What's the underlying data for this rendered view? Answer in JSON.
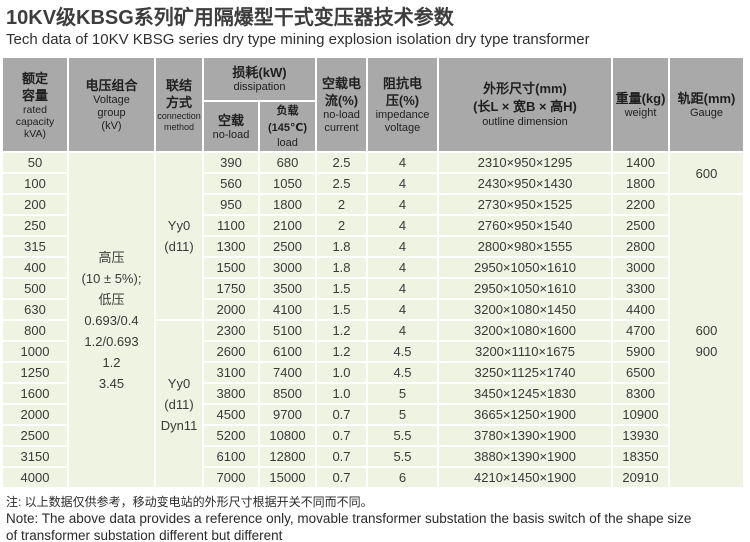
{
  "page": {
    "title_zh": "10KV级KBSG系列矿用隔爆型干式变压器技术参数",
    "title_en": "Tech data of 10KV KBSG series dry type mining explosion isolation dry type transformer"
  },
  "colors": {
    "header_bg": "#a9a9a9",
    "cell_bg": "#eef3e2",
    "grid": "#ffffff",
    "text": "#3a3a3a"
  },
  "table": {
    "header": {
      "capacity": {
        "zh": "额定\n容量",
        "en": "rated\ncapacity\nkVA)"
      },
      "voltage": {
        "zh": "电压组合",
        "en": "Voltage\ngroup\n(kV)"
      },
      "connection": {
        "zh": "联结\n方式",
        "en": "connection\nmethod"
      },
      "dissipation": {
        "zh": "损耗(kW)",
        "en": "dissipation"
      },
      "no_load_loss": {
        "zh": "空载",
        "en": "no-load"
      },
      "load_loss": {
        "zh": "负载(145℃)",
        "en": "load"
      },
      "no_load_current": {
        "zh": "空载电\n流(%)",
        "en": "no-load\ncurrent"
      },
      "impedance": {
        "zh": "阻抗电\n压(%)",
        "en": "impedance\nvoltage"
      },
      "dimension": {
        "zh": "外形尺寸(mm)\n(长L × 宽B × 高H)",
        "en": "outline dimension"
      },
      "weight": {
        "zh": "重量(kg)",
        "en": "weight"
      },
      "gauge": {
        "zh": "轨距(mm)",
        "en": "Gauge"
      }
    },
    "merged": {
      "voltage_group": "高压\n(10 ± 5%);\n低压\n0.693/0.4\n1.2/0.693\n1.2\n3.45",
      "connection_1": "Yy0\n(d11)",
      "connection_2": "Yy0\n(d11)\nDyn11",
      "gauge_1": "600",
      "gauge_2": "600\n900"
    },
    "rows": [
      {
        "capacity": "50",
        "no_load_loss": "390",
        "load_loss": "680",
        "no_load_current": "2.5",
        "impedance": "4",
        "dimension": "2310×950×1295",
        "weight": "1400"
      },
      {
        "capacity": "100",
        "no_load_loss": "560",
        "load_loss": "1050",
        "no_load_current": "2.5",
        "impedance": "4",
        "dimension": "2430×950×1430",
        "weight": "1800"
      },
      {
        "capacity": "200",
        "no_load_loss": "950",
        "load_loss": "1800",
        "no_load_current": "2",
        "impedance": "4",
        "dimension": "2730×950×1525",
        "weight": "2200"
      },
      {
        "capacity": "250",
        "no_load_loss": "1100",
        "load_loss": "2100",
        "no_load_current": "2",
        "impedance": "4",
        "dimension": "2760×950×1540",
        "weight": "2500"
      },
      {
        "capacity": "315",
        "no_load_loss": "1300",
        "load_loss": "2500",
        "no_load_current": "1.8",
        "impedance": "4",
        "dimension": "2800×980×1555",
        "weight": "2800"
      },
      {
        "capacity": "400",
        "no_load_loss": "1500",
        "load_loss": "3000",
        "no_load_current": "1.8",
        "impedance": "4",
        "dimension": "2950×1050×1610",
        "weight": "3000"
      },
      {
        "capacity": "500",
        "no_load_loss": "1750",
        "load_loss": "3500",
        "no_load_current": "1.5",
        "impedance": "4",
        "dimension": "2950×1050×1610",
        "weight": "3300"
      },
      {
        "capacity": "630",
        "no_load_loss": "2000",
        "load_loss": "4100",
        "no_load_current": "1.5",
        "impedance": "4",
        "dimension": "3200×1080×1450",
        "weight": "4400"
      },
      {
        "capacity": "800",
        "no_load_loss": "2300",
        "load_loss": "5100",
        "no_load_current": "1.2",
        "impedance": "4",
        "dimension": "3200×1080×1600",
        "weight": "4700"
      },
      {
        "capacity": "1000",
        "no_load_loss": "2600",
        "load_loss": "6100",
        "no_load_current": "1.2",
        "impedance": "4.5",
        "dimension": "3200×1110×1675",
        "weight": "5900"
      },
      {
        "capacity": "1250",
        "no_load_loss": "3100",
        "load_loss": "7400",
        "no_load_current": "1.0",
        "impedance": "4.5",
        "dimension": "3250×1125×1740",
        "weight": "6500"
      },
      {
        "capacity": "1600",
        "no_load_loss": "3800",
        "load_loss": "8500",
        "no_load_current": "1.0",
        "impedance": "5",
        "dimension": "3450×1245×1830",
        "weight": "8300"
      },
      {
        "capacity": "2000",
        "no_load_loss": "4500",
        "load_loss": "9700",
        "no_load_current": "0.7",
        "impedance": "5",
        "dimension": "3665×1250×1900",
        "weight": "10900"
      },
      {
        "capacity": "2500",
        "no_load_loss": "5200",
        "load_loss": "10800",
        "no_load_current": "0.7",
        "impedance": "5.5",
        "dimension": "3780×1390×1900",
        "weight": "13930"
      },
      {
        "capacity": "3150",
        "no_load_loss": "6100",
        "load_loss": "12800",
        "no_load_current": "0.7",
        "impedance": "5.5",
        "dimension": "3880×1390×1900",
        "weight": "18350"
      },
      {
        "capacity": "4000",
        "no_load_loss": "7000",
        "load_loss": "15000",
        "no_load_current": "0.7",
        "impedance": "6",
        "dimension": "4210×1450×1900",
        "weight": "20910"
      }
    ]
  },
  "notes": {
    "zh": "注: 以上数据仅供参考，移动变电站的外形尺寸根据开关不同而不同。",
    "en": "Note: The above data provides a reference only, movable transformer substation the basis switch of the shape size\nof transformer substation different but different"
  }
}
